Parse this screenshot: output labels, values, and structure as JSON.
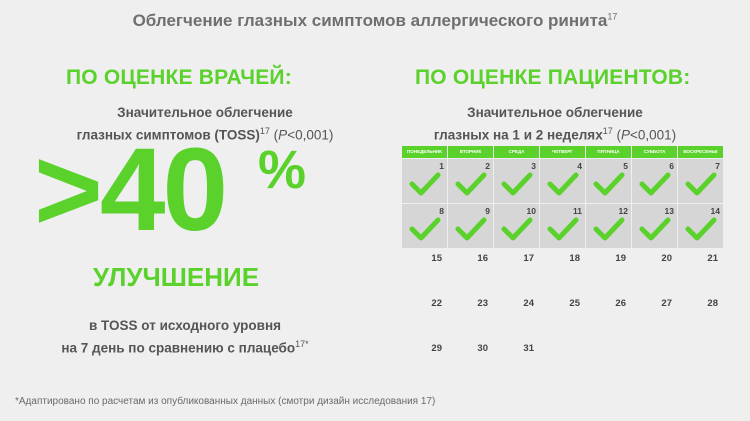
{
  "title": "Облегчение глазных симптомов аллергического ринита",
  "title_sup": "17",
  "left": {
    "heading": "ПО ОЦЕНКЕ ВРАЧЕЙ:",
    "sub_line1": "Значительное облегчение",
    "sub_line2": "глазных симптомов (TOSS)",
    "sub_sup": "17",
    "p_label": "P",
    "p_value": "<0,001",
    "big_value": ">40",
    "big_percent": "%",
    "improvement": "УЛУЧШЕНИЕ",
    "note_line1": "в TOSS от исходного уровня",
    "note_line2": "на 7 день по сравнению с плацебо",
    "note_sup": "17*"
  },
  "right": {
    "heading": "ПО ОЦЕНКЕ ПАЦИЕНТОВ:",
    "sub_line1": "Значительное облегчение",
    "sub_line2": "глазных на 1 и 2 неделях",
    "sub_sup": "17",
    "p_label": "P",
    "p_value": "<0,001"
  },
  "calendar": {
    "days": [
      "ПОНЕДЕЛЬНИК",
      "ВТОРНИК",
      "СРЕДА",
      "ЧЕТВЕРГ",
      "ПЯТНИЦА",
      "СУББОТА",
      "ВОСКРЕСЕНЬЕ"
    ],
    "checked_days": [
      "1",
      "2",
      "3",
      "4",
      "5",
      "6",
      "7",
      "8",
      "9",
      "10",
      "11",
      "12",
      "13",
      "14"
    ],
    "plain_days": [
      "15",
      "16",
      "17",
      "18",
      "19",
      "20",
      "21",
      "22",
      "23",
      "24",
      "25",
      "26",
      "27",
      "28",
      "29",
      "30",
      "31"
    ],
    "accent_color": "#5ad22b",
    "check_icon": "checkmark-icon"
  },
  "footnote": "*Адаптировано по расчетам из опубликованных данных (смотри дизайн исследования 17)"
}
